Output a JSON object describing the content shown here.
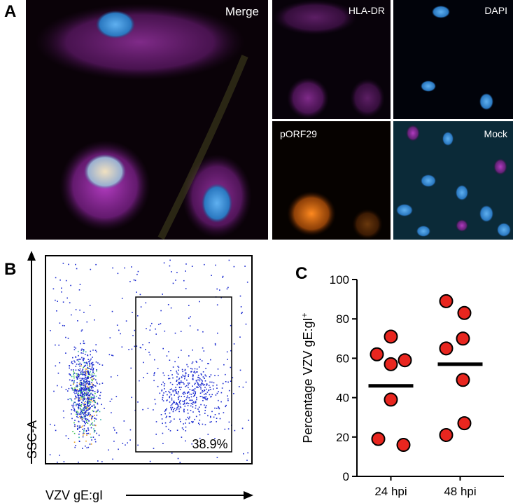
{
  "panels": {
    "a": {
      "label": "A",
      "images": [
        "Merge",
        "HLA-DR",
        "DAPI",
        "pORF29",
        "Mock"
      ]
    },
    "b": {
      "label": "B",
      "y_label": "SSC-A",
      "x_label": "VZV gE:gI",
      "gate_label": "38.9%"
    },
    "c": {
      "label": "C"
    }
  },
  "chart_data": {
    "type": "dot",
    "y_label": "Percentage VZV gE:gI",
    "y_label_superscript": "+",
    "categories": [
      "24 hpi",
      "48 hpi"
    ],
    "groups": [
      [
        71,
        62,
        59,
        57,
        39,
        19,
        16
      ],
      [
        89,
        83,
        70,
        65,
        49,
        27,
        21
      ]
    ],
    "means": [
      46,
      57
    ],
    "color": "#e8261f",
    "ylim": [
      0,
      100
    ],
    "yticks": [
      0,
      20,
      40,
      60,
      80,
      100
    ]
  }
}
